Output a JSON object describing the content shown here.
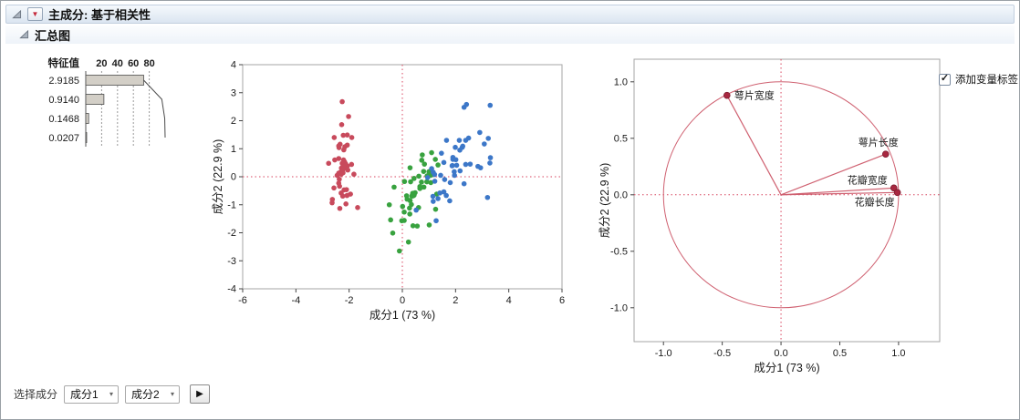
{
  "window": {
    "title": "主成分: 基于相关性",
    "subtitle": "汇总图"
  },
  "icons": {
    "red_triangle": "▼",
    "chevron_down": "▾",
    "play": "▶",
    "check": "✓"
  },
  "colors": {
    "group_red": "#c84a5c",
    "group_green": "#38a23f",
    "group_blue": "#3c77c8",
    "reference": "#d8455f",
    "loading_line": "#cf6070",
    "loading_point": "#a82740",
    "bar_fill": "#d3cfc7",
    "bar_stroke": "#4d4d4d",
    "frame": "#a6a6a6",
    "curve": "#4a4a4a"
  },
  "eigenvalues": {
    "header": "特征值",
    "scale_ticks": [
      "20",
      "40",
      "60",
      "80"
    ],
    "scale_values": [
      20,
      40,
      60,
      80
    ],
    "rows": [
      {
        "value": "2.9185",
        "pct": 72.96
      },
      {
        "value": "0.9140",
        "pct": 22.85
      },
      {
        "value": "0.1468",
        "pct": 3.67
      },
      {
        "value": "0.0207",
        "pct": 0.52
      }
    ],
    "cumulative": [
      72.96,
      95.81,
      99.48,
      100
    ]
  },
  "checkbox": {
    "label": "添加变量标签",
    "checked": true
  },
  "controls": {
    "label": "选择成分",
    "component1": "成分1",
    "component2": "成分2"
  },
  "chart_data": [
    {
      "type": "scatter",
      "name": "score-plot",
      "title": "",
      "xlabel": "成分1  (73 %)",
      "ylabel": "成分2  (22.9 %)",
      "xlim": [
        -6,
        6
      ],
      "ylim": [
        -4,
        4
      ],
      "xticks": [
        -6,
        -4,
        -2,
        0,
        2,
        4,
        6
      ],
      "xtick_labels": [
        "-6",
        "-4",
        "-2",
        "0",
        "2",
        "4",
        "6"
      ],
      "yticks": [
        -4,
        -3,
        -2,
        -1,
        0,
        1,
        2,
        3,
        4
      ],
      "ytick_labels": [
        "-4",
        "-3",
        "-2",
        "-1",
        "0",
        "1",
        "2",
        "3",
        "4"
      ],
      "grid": false,
      "legend": "none",
      "reference_lines": true,
      "series": [
        {
          "name": "group-1",
          "color_key": "group_red",
          "points": [
            [
              -2.26,
              0.48
            ],
            [
              -2.08,
              -0.67
            ],
            [
              -2.36,
              -0.34
            ],
            [
              -2.3,
              -0.58
            ],
            [
              -2.39,
              0.65
            ],
            [
              -2.07,
              1.49
            ],
            [
              -2.45,
              0.05
            ],
            [
              -2.25,
              0.22
            ],
            [
              -2.35,
              -1.13
            ],
            [
              -2.19,
              -0.47
            ],
            [
              -2.16,
              1.07
            ],
            [
              -2.33,
              0.16
            ],
            [
              -2.24,
              -0.69
            ],
            [
              -2.64,
              -0.93
            ],
            [
              -2.28,
              1.86
            ],
            [
              -2.26,
              2.68
            ],
            [
              -2.22,
              1.48
            ],
            [
              -2.2,
              0.49
            ],
            [
              -1.9,
              1.4
            ],
            [
              -2.34,
              1.16
            ],
            [
              -1.91,
              0.44
            ],
            [
              -2.2,
              0.96
            ],
            [
              -2.77,
              0.48
            ],
            [
              -1.82,
              0.09
            ],
            [
              -2.23,
              0.14
            ],
            [
              -1.95,
              -0.62
            ],
            [
              -2.05,
              0.24
            ],
            [
              -2.17,
              0.53
            ],
            [
              -2.29,
              0.31
            ],
            [
              -2.37,
              -0.09
            ],
            [
              -2.39,
              -0.23
            ],
            [
              -2.07,
              0.38
            ],
            [
              -2.39,
              1.1
            ],
            [
              -2.56,
              1.4
            ],
            [
              -2.12,
              -0.97
            ],
            [
              -2.3,
              0.09
            ],
            [
              -2.54,
              0.6
            ],
            [
              -2.25,
              0.26
            ],
            [
              -2.63,
              -0.81
            ],
            [
              -2.19,
              0.3
            ],
            [
              -2.02,
              2.15
            ],
            [
              -1.68,
              -1.1
            ],
            [
              -2.57,
              -0.4
            ],
            [
              -2.13,
              0.46
            ],
            [
              -2.07,
              1.13
            ],
            [
              -2.1,
              -0.46
            ],
            [
              -2.38,
              1.04
            ],
            [
              -2.39,
              0.13
            ],
            [
              -2.22,
              0.37
            ],
            [
              -2.21,
              0.6
            ]
          ]
        },
        {
          "name": "group-2",
          "color_key": "group_green",
          "points": [
            [
              1.1,
              0.86
            ],
            [
              0.73,
              0.59
            ],
            [
              1.24,
              0.62
            ],
            [
              0.4,
              -1.75
            ],
            [
              1.07,
              -0.21
            ],
            [
              0.39,
              -0.59
            ],
            [
              0.75,
              0.78
            ],
            [
              -0.49,
              -1.0
            ],
            [
              0.93,
              0.03
            ],
            [
              0.01,
              -1.06
            ],
            [
              -0.11,
              -2.65
            ],
            [
              0.44,
              -0.06
            ],
            [
              0.56,
              -1.76
            ],
            [
              0.72,
              -0.19
            ],
            [
              0.16,
              -0.68
            ],
            [
              0.83,
              0.45
            ],
            [
              0.66,
              -0.35
            ],
            [
              0.08,
              -0.17
            ],
            [
              1.01,
              -1.72
            ],
            [
              0.07,
              -1.26
            ],
            [
              1.06,
              0.05
            ],
            [
              0.37,
              -0.67
            ],
            [
              1.29,
              -0.62
            ],
            [
              0.92,
              -0.18
            ],
            [
              0.66,
              -0.42
            ],
            [
              0.8,
              0.19
            ],
            [
              1.17,
              0.08
            ],
            [
              1.34,
              0.42
            ],
            [
              0.81,
              -0.37
            ],
            [
              -0.31,
              -0.37
            ],
            [
              0.07,
              -1.56
            ],
            [
              -0.02,
              -1.57
            ],
            [
              0.28,
              -1.33
            ],
            [
              1.25,
              -1.16
            ],
            [
              0.36,
              -0.69
            ],
            [
              0.29,
              0.32
            ],
            [
              1.0,
              0.18
            ],
            [
              0.61,
              -1.1
            ],
            [
              0.48,
              -0.57
            ],
            [
              0.18,
              -0.8
            ],
            [
              0.27,
              -1.12
            ],
            [
              0.62,
              0.02
            ],
            [
              0.34,
              -0.99
            ],
            [
              -0.36,
              -2.01
            ],
            [
              0.29,
              -0.85
            ],
            [
              0.31,
              -0.18
            ],
            [
              0.41,
              -0.68
            ],
            [
              0.44,
              -0.66
            ],
            [
              -0.44,
              -1.54
            ],
            [
              0.23,
              -2.33
            ]
          ]
        },
        {
          "name": "group-3",
          "color_key": "group_blue",
          "points": [
            [
              1.88,
              0.4
            ],
            [
              1.16,
              -0.88
            ],
            [
              2.55,
              0.45
            ],
            [
              1.96,
              0.05
            ],
            [
              2.38,
              0.44
            ],
            [
              3.31,
              0.68
            ],
            [
              0.52,
              -1.19
            ],
            [
              2.94,
              0.32
            ],
            [
              2.32,
              -0.25
            ],
            [
              2.91,
              1.58
            ],
            [
              1.66,
              1.3
            ],
            [
              1.8,
              -0.21
            ],
            [
              2.17,
              0.21
            ],
            [
              1.34,
              -0.78
            ],
            [
              1.59,
              -0.1
            ],
            [
              1.9,
              0.62
            ],
            [
              1.95,
              0.18
            ],
            [
              3.3,
              2.55
            ],
            [
              3.2,
              -0.74
            ],
            [
              1.27,
              -1.57
            ],
            [
              2.38,
              1.3
            ],
            [
              1.41,
              -0.58
            ],
            [
              3.29,
              0.49
            ],
            [
              1.22,
              -0.16
            ],
            [
              2.27,
              1.09
            ],
            [
              2.32,
              2.48
            ],
            [
              1.1,
              0.29
            ],
            [
              1.21,
              0.08
            ],
            [
              1.56,
              -0.54
            ],
            [
              2.41,
              2.58
            ],
            [
              2.84,
              0.37
            ],
            [
              3.23,
              1.37
            ],
            [
              2.16,
              0.95
            ],
            [
              1.44,
              0.05
            ],
            [
              1.78,
              -0.86
            ],
            [
              3.08,
              1.17
            ],
            [
              2.14,
              1.3
            ],
            [
              1.9,
              0.69
            ],
            [
              1.16,
              0.16
            ],
            [
              2.04,
              0.41
            ],
            [
              1.99,
              1.05
            ],
            [
              1.87,
              0.39
            ],
            [
              1.15,
              -0.7
            ],
            [
              2.49,
              1.38
            ],
            [
              2.25,
              1.05
            ],
            [
              2.01,
              0.61
            ],
            [
              1.65,
              -0.67
            ],
            [
              1.56,
              0.51
            ],
            [
              1.47,
              0.84
            ],
            [
              0.95,
              -0.03
            ]
          ]
        }
      ]
    },
    {
      "type": "scatter",
      "name": "loading-plot",
      "title": "",
      "xlabel": "成分1  (73 %)",
      "ylabel": "成分2  (22.9 %)",
      "xlim": [
        -1.25,
        1.35
      ],
      "ylim": [
        -1.3,
        1.2
      ],
      "xticks": [
        -1,
        -0.5,
        0,
        0.5,
        1
      ],
      "xtick_labels": [
        "-1.0",
        "-0.5",
        "0.0",
        "0.5",
        "1.0"
      ],
      "yticks": [
        -1,
        -0.5,
        0,
        0.5,
        1
      ],
      "ytick_labels": [
        "-1.0",
        "-0.5",
        "0.0",
        "0.5",
        "1.0"
      ],
      "grid": false,
      "legend": "none",
      "reference_lines": true,
      "unit_circle": true,
      "vectors": [
        {
          "label": "萼片宽度",
          "x": -0.46,
          "y": 0.88,
          "anchor": "start",
          "dx": 8,
          "dy": 4
        },
        {
          "label": "萼片长度",
          "x": 0.89,
          "y": 0.36,
          "anchor": "middle",
          "dx": -8,
          "dy": -9
        },
        {
          "label": "花瓣宽度",
          "x": 0.96,
          "y": 0.06,
          "anchor": "end",
          "dx": -7,
          "dy": -5
        },
        {
          "label": "花瓣长度",
          "x": 0.99,
          "y": 0.02,
          "anchor": "end",
          "dx": -3,
          "dy": 14
        }
      ]
    }
  ]
}
